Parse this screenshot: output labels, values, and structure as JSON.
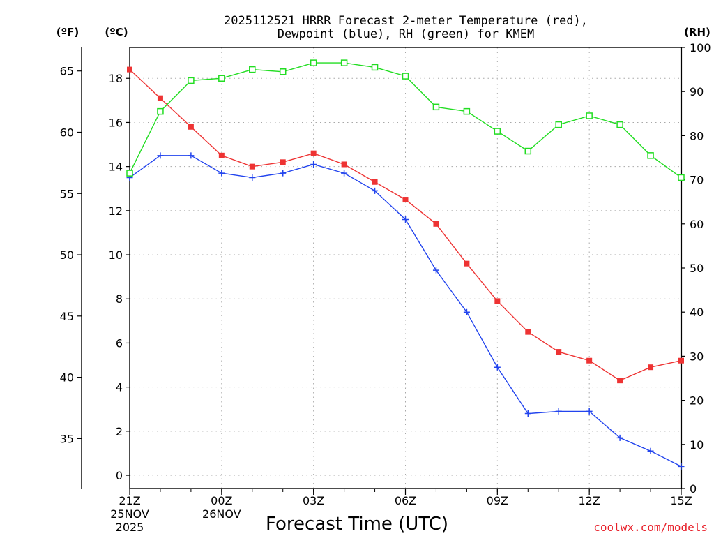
{
  "chart_data": {
    "type": "line",
    "title_line1": "2025112521 HRRR Forecast 2-meter Temperature (red),",
    "title_line2": "Dewpoint (blue), RH (green) for KMEM",
    "left_unit_f": "(ºF)",
    "left_unit_c": "(ºC)",
    "right_unit": "(RH)",
    "xlabel": "Forecast Time (UTC)",
    "credit": "coolwx.com/models",
    "ylim_c": [
      -0.6,
      19.4
    ],
    "ylim_rh": [
      0,
      100
    ],
    "celsius_ticks": [
      "0",
      "2",
      "4",
      "6",
      "8",
      "10",
      "12",
      "14",
      "16",
      "18"
    ],
    "fahrenheit_ticks": [
      "35",
      "40",
      "45",
      "50",
      "55",
      "60",
      "65"
    ],
    "rh_ticks": [
      "0",
      "10",
      "20",
      "30",
      "40",
      "50",
      "60",
      "70",
      "80",
      "90",
      "100"
    ],
    "x_hours": [
      0,
      1,
      2,
      3,
      4,
      5,
      6,
      7,
      8,
      9,
      10,
      11,
      12,
      13,
      14,
      15,
      16,
      17,
      18
    ],
    "x_major_ticks": [
      {
        "hour": 0,
        "label": "21Z",
        "date": "25NOV",
        "year": "2025"
      },
      {
        "hour": 3,
        "label": "00Z",
        "date": "26NOV",
        "year": ""
      },
      {
        "hour": 6,
        "label": "03Z",
        "date": "",
        "year": ""
      },
      {
        "hour": 9,
        "label": "06Z",
        "date": "",
        "year": ""
      },
      {
        "hour": 12,
        "label": "09Z",
        "date": "",
        "year": ""
      },
      {
        "hour": 15,
        "label": "12Z",
        "date": "",
        "year": ""
      },
      {
        "hour": 18,
        "label": "15Z",
        "date": "",
        "year": ""
      }
    ],
    "series": [
      {
        "name": "Temperature",
        "unit": "C",
        "color": "#ee3333",
        "marker": "filled-square",
        "values": [
          18.4,
          17.1,
          15.8,
          14.5,
          14.0,
          14.2,
          14.6,
          14.1,
          13.3,
          12.5,
          11.4,
          9.6,
          7.9,
          6.5,
          5.6,
          5.2,
          4.3,
          4.9,
          5.2
        ]
      },
      {
        "name": "Dewpoint",
        "unit": "C",
        "color": "#2244ee",
        "marker": "plus",
        "values": [
          13.5,
          14.5,
          14.5,
          13.7,
          13.5,
          13.7,
          14.1,
          13.7,
          12.9,
          11.6,
          9.3,
          7.4,
          4.9,
          2.8,
          2.9,
          2.9,
          1.7,
          1.1,
          0.4
        ]
      },
      {
        "name": "RH",
        "unit": "%",
        "color": "#22dd22",
        "marker": "open-square",
        "values": [
          71.5,
          85.5,
          92.5,
          93,
          95,
          94.5,
          96.5,
          96.5,
          95.5,
          93.5,
          86.5,
          85.5,
          81,
          76.5,
          82.5,
          84.5,
          82.5,
          75.5,
          70.5
        ]
      }
    ]
  }
}
